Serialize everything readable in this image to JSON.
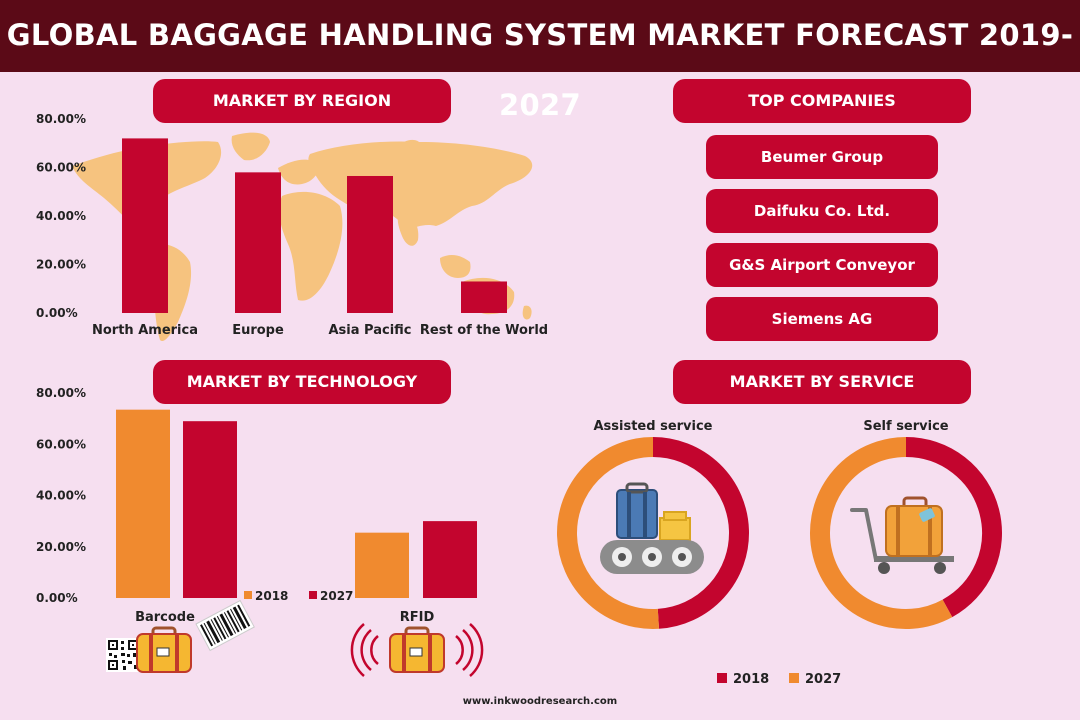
{
  "title": "GLOBAL BAGGAGE HANDLING SYSTEM MARKET FORECAST 2019-2027",
  "sections": {
    "region": "MARKET BY REGION",
    "technology": "MARKET BY TECHNOLOGY",
    "companies": "TOP COMPANIES",
    "service": "MARKET BY SERVICE"
  },
  "companies": [
    "Beumer Group",
    "Daifuku Co. Ltd.",
    "G&S Airport Conveyor",
    "Siemens AG"
  ],
  "footer": "www.inkwoodresearch.com",
  "colors": {
    "crimson": "#c3052e",
    "orange": "#f08a2f",
    "map": "#f6c37f",
    "header": "#5b0a17",
    "background": "#f6dff0"
  },
  "icons": [
    "world-map-icon",
    "qr-code-icon",
    "suitcase-icon",
    "barcode-icon",
    "rfid-wave-icon",
    "conveyor-belt-icon",
    "luggage-cart-icon"
  ],
  "chart_data": [
    {
      "type": "bar",
      "title": "MARKET BY REGION",
      "categories": [
        "North America",
        "Europe",
        "Asia Pacific",
        "Rest of the World"
      ],
      "values": [
        72,
        58,
        56.5,
        13
      ],
      "ylim": [
        0,
        80
      ],
      "yticks": [
        "80.00%",
        "60.00%",
        "40.00%",
        "20.00%",
        "0.00%"
      ],
      "color": "#c3052e"
    },
    {
      "type": "bar",
      "title": "MARKET BY TECHNOLOGY",
      "categories": [
        "Barcode",
        "RFID"
      ],
      "series": [
        {
          "name": "2018",
          "values": [
            73.5,
            25.5
          ],
          "color": "#f08a2f"
        },
        {
          "name": "2027",
          "values": [
            69,
            30
          ],
          "color": "#c3052e"
        }
      ],
      "ylim": [
        0,
        80
      ],
      "yticks": [
        "80.00%",
        "60.00%",
        "40.00%",
        "20.00%",
        "0.00%"
      ]
    },
    {
      "type": "pie",
      "title": "Assisted service",
      "slices": [
        {
          "label": "2018",
          "value": 49,
          "color": "#c3052e"
        },
        {
          "label": "2027",
          "value": 51,
          "color": "#f08a2f"
        }
      ]
    },
    {
      "type": "pie",
      "title": "Self service",
      "slices": [
        {
          "label": "2018",
          "value": 42,
          "color": "#c3052e"
        },
        {
          "label": "2027",
          "value": 58,
          "color": "#f08a2f"
        }
      ]
    }
  ],
  "service_legend": [
    "2018",
    "2027"
  ]
}
